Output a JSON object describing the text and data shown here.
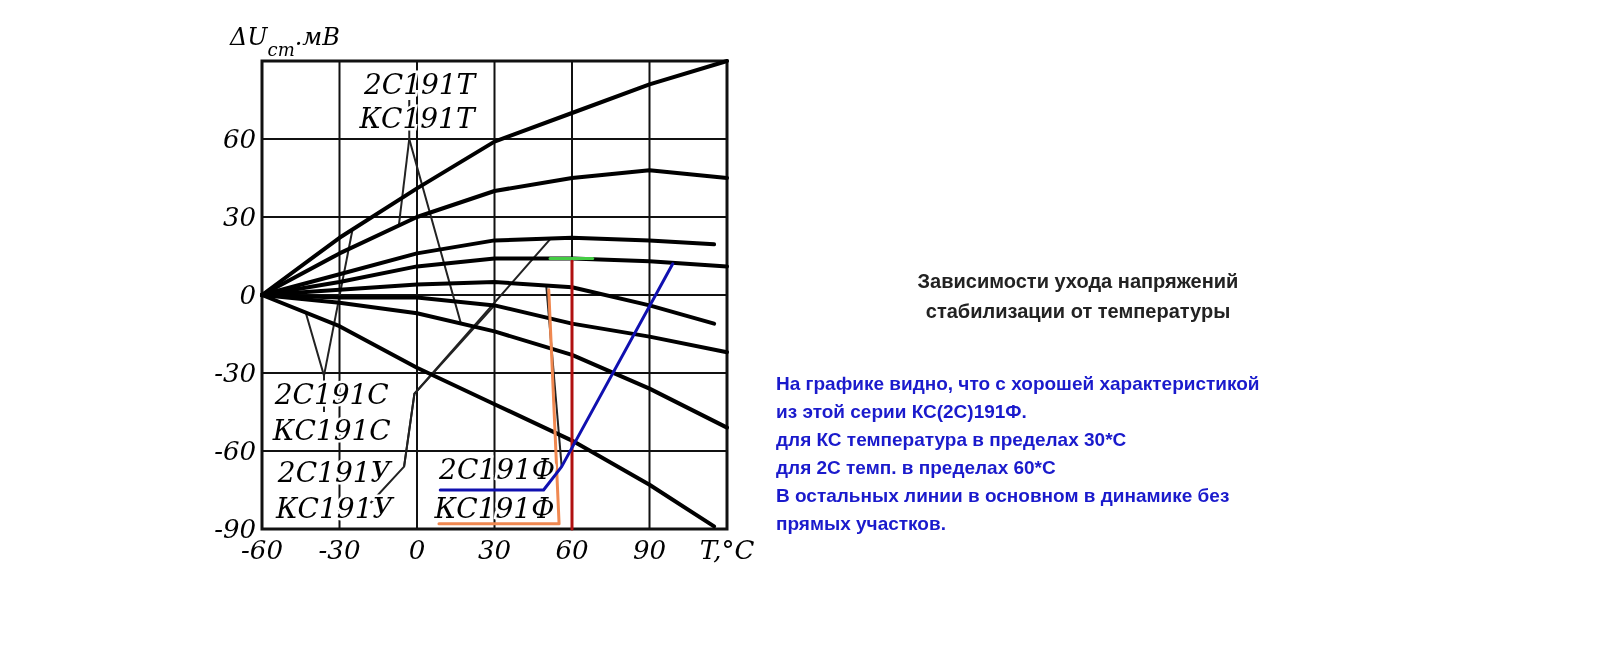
{
  "chart_data": {
    "type": "line",
    "title": "Зависимости ухода напряжений\nстабилизации от температуры",
    "xlabel": "T,°C",
    "ylabel": "ΔU$_{ст}$.мВ",
    "xlim": [
      -60,
      120
    ],
    "ylim": [
      -90,
      90
    ],
    "xticks": [
      -60,
      -30,
      0,
      30,
      60,
      90,
      {
        "value": 120,
        "label": null
      }
    ],
    "yticks": [
      {
        "value": -90,
        "label": "-90"
      },
      {
        "value": -60,
        "label": "-60"
      },
      {
        "value": -30,
        "label": "-30"
      },
      0,
      30,
      60,
      {
        "value": 90,
        "label": null
      }
    ],
    "grid": true,
    "x": [
      -60,
      -30,
      0,
      30,
      60,
      90,
      120
    ],
    "series": [
      {
        "color": "#000000",
        "values": [
          0,
          22,
          41,
          59,
          70,
          81,
          90
        ]
      },
      {
        "color": "#000000",
        "values": [
          0,
          16,
          30,
          40,
          45,
          48,
          45
        ]
      },
      {
        "color": "#000000",
        "x": [
          -60,
          -30,
          0,
          30,
          60,
          90,
          115
        ],
        "values": [
          0,
          8,
          16,
          21,
          22,
          21,
          19.5
        ]
      },
      {
        "color": "#000000",
        "values": [
          0,
          5,
          11,
          14,
          14,
          13,
          11
        ]
      },
      {
        "color": "#000000",
        "x": [
          -60,
          -30,
          0,
          30,
          60,
          90,
          115
        ],
        "values": [
          0,
          2,
          4,
          5,
          3,
          -4,
          -11
        ]
      },
      {
        "color": "#000000",
        "values": [
          0,
          -1,
          -1,
          -4,
          -11,
          -16,
          -22
        ]
      },
      {
        "color": "#000000",
        "values": [
          0,
          -3,
          -7,
          -14,
          -23,
          -36,
          -51
        ]
      },
      {
        "color": "#000000",
        "x": [
          -60,
          -30,
          0,
          30,
          60,
          90,
          115
        ],
        "values": [
          0,
          -12,
          -28,
          -42,
          -56,
          -73,
          -89
        ]
      },
      {
        "color": "#44cc44",
        "x": [
          51.5,
          68
        ],
        "values": [
          14,
          14
        ]
      },
      {
        "color": "#b01010",
        "x": [
          60,
          60
        ],
        "values": [
          -90,
          13
        ]
      },
      {
        "color": "#f08850",
        "x": [
          8.5,
          55,
          51
        ],
        "values": [
          -88,
          -88,
          2
        ]
      },
      {
        "color": "#1010b0",
        "x": [
          9,
          49,
          56,
          99
        ],
        "values": [
          -75,
          -75,
          -66,
          12
        ]
      }
    ],
    "annotations": [
      {
        "text": "2С191Т",
        "x": 17,
        "y": -11
      },
      {
        "text": "КС191Т",
        "x": -7,
        "y": 27
      },
      {
        "text": "2С191С",
        "x": -25,
        "y": 25
      },
      {
        "text": "КС191С",
        "x": -43,
        "y": -7
      },
      {
        "text": "2С191У",
        "x": 52,
        "y": 22
      },
      {
        "text": "КС191У",
        "x": 30,
        "y": -4
      },
      {
        "text": "2С191Ф",
        "x": 50,
        "y": 4
      },
      "КС191Ф",
      "На графике видно, что с хорошей характеристикой\nиз этой серии КС(2С)191Ф.\nдля КС температура в пределах 30*С\nдля 2С темп. в пределах 60*С\nВ остальных линии в основном в динамике без\nпрямых участков."
    ]
  }
}
